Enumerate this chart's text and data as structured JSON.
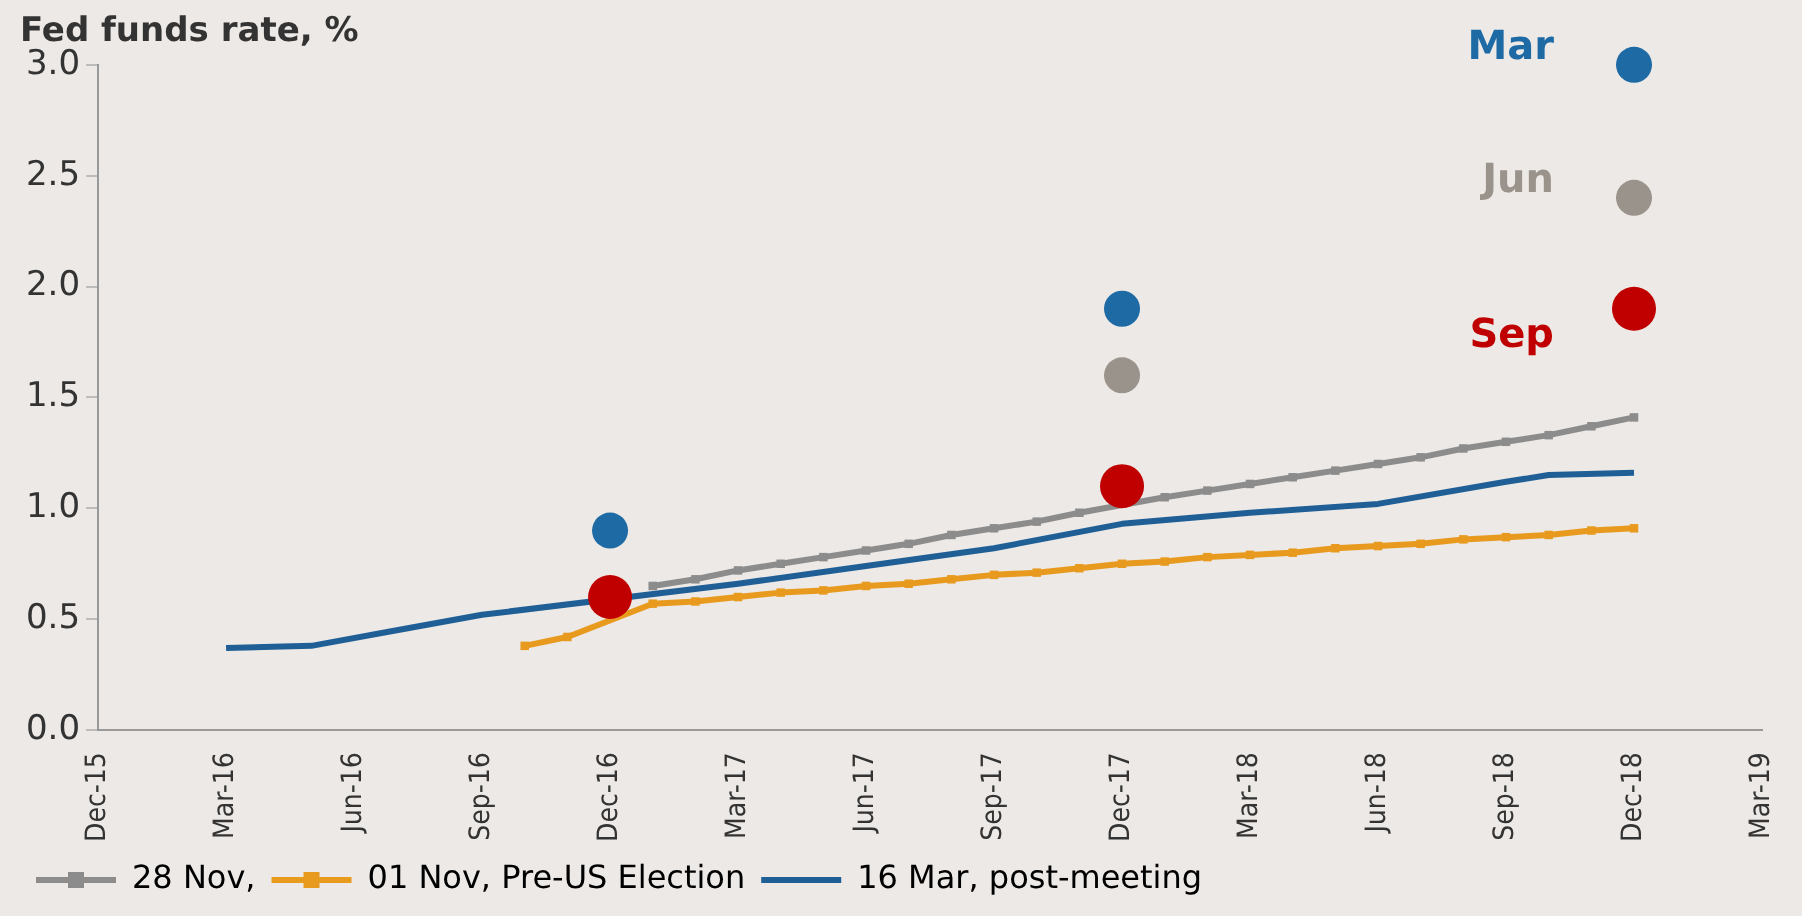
{
  "chart_data": {
    "type": "line",
    "title": "Fed funds rate, %",
    "legend": "bottom",
    "grid": false,
    "xlim": [
      "2015-12",
      "2019-03"
    ],
    "xticks": [
      {
        "value": "2015-12",
        "label": "Dec-15"
      },
      {
        "value": "2016-03",
        "label": "Mar-16"
      },
      {
        "value": "2016-06",
        "label": "Jun-16"
      },
      {
        "value": "2016-09",
        "label": "Sep-16"
      },
      {
        "value": "2016-12",
        "label": "Dec-16"
      },
      {
        "value": "2017-03",
        "label": "Mar-17"
      },
      {
        "value": "2017-06",
        "label": "Jun-17"
      },
      {
        "value": "2017-09",
        "label": "Sep-17"
      },
      {
        "value": "2017-12",
        "label": "Dec-17"
      },
      {
        "value": "2018-03",
        "label": "Mar-18"
      },
      {
        "value": "2018-06",
        "label": "Jun-18"
      },
      {
        "value": "2018-09",
        "label": "Sep-18"
      },
      {
        "value": "2018-12",
        "label": "Dec-18"
      },
      {
        "value": "2019-03",
        "label": "Mar-19"
      }
    ],
    "ylim": [
      0,
      3
    ],
    "yticks": [
      {
        "value": 0,
        "label": "0.0"
      },
      {
        "value": 0.5,
        "label": "0.5"
      },
      {
        "value": 1,
        "label": "1.0"
      },
      {
        "value": 1.5,
        "label": "1.5"
      },
      {
        "value": 2,
        "label": "2.0"
      },
      {
        "value": 2.5,
        "label": "2.5"
      },
      {
        "value": 3,
        "label": "3.0"
      }
    ],
    "series": [
      {
        "name": "28 Nov,",
        "marker": "square",
        "color": "#8c8c8c",
        "x": [
          "2017-01",
          "2017-02",
          "2017-03",
          "2017-04",
          "2017-05",
          "2017-06",
          "2017-07",
          "2017-08",
          "2017-09",
          "2017-10",
          "2017-11",
          "2017-12",
          "2018-01",
          "2018-02",
          "2018-03",
          "2018-04",
          "2018-05",
          "2018-06",
          "2018-07",
          "2018-08",
          "2018-09",
          "2018-10",
          "2018-11",
          "2018-12"
        ],
        "values": [
          0.65,
          0.68,
          0.72,
          0.75,
          0.78,
          0.81,
          0.84,
          0.88,
          0.91,
          0.94,
          0.98,
          null,
          1.05,
          1.08,
          1.11,
          1.14,
          1.17,
          1.2,
          1.23,
          1.27,
          1.3,
          1.33,
          1.37,
          1.41
        ]
      },
      {
        "name": "01 Nov, Pre-US Election",
        "marker": "square",
        "color": "#e89a1e",
        "x": [
          "2016-10",
          "2016-11",
          "2016-12",
          "2017-01",
          "2017-02",
          "2017-03",
          "2017-04",
          "2017-05",
          "2017-06",
          "2017-07",
          "2017-08",
          "2017-09",
          "2017-10",
          "2017-11",
          "2017-12",
          "2018-01",
          "2018-02",
          "2018-03",
          "2018-04",
          "2018-05",
          "2018-06",
          "2018-07",
          "2018-08",
          "2018-09",
          "2018-10",
          "2018-11",
          "2018-12"
        ],
        "values": [
          0.38,
          0.42,
          null,
          0.57,
          0.58,
          0.6,
          0.62,
          0.63,
          0.65,
          0.66,
          0.68,
          0.7,
          0.71,
          0.73,
          0.75,
          0.76,
          0.78,
          0.79,
          0.8,
          0.82,
          0.83,
          0.84,
          0.86,
          0.87,
          0.88,
          0.9,
          0.91
        ]
      },
      {
        "name": "16 Mar, post-meeting",
        "marker": "none",
        "color": "#1f5f96",
        "x": [
          "2016-03",
          "2016-05",
          "2016-07",
          "2016-09",
          "2016-12",
          "2017-03",
          "2017-06",
          "2017-09",
          "2017-12",
          "2018-03",
          "2018-06",
          "2018-09",
          "2018-10",
          "2018-12"
        ],
        "values": [
          0.37,
          0.38,
          0.45,
          0.52,
          null,
          0.66,
          0.74,
          0.82,
          0.93,
          0.98,
          1.02,
          1.12,
          1.15,
          1.16
        ]
      },
      {
        "name": "Mar",
        "type": "scatter",
        "marker": "circle",
        "color": "#1d6aa5",
        "x": [
          "2016-12",
          "2017-12",
          "2018-12"
        ],
        "values": [
          0.9,
          1.9,
          3.0
        ]
      },
      {
        "name": "Jun",
        "type": "scatter",
        "marker": "circle",
        "color": "#9a938b",
        "x": [
          "2017-12",
          "2018-12"
        ],
        "values": [
          1.6,
          2.4
        ]
      },
      {
        "name": "Sep",
        "type": "scatter",
        "marker": "circle",
        "color": "#c00000",
        "x": [
          "2016-12",
          "2017-12",
          "2018-12"
        ],
        "values": [
          0.6,
          1.1,
          1.9
        ]
      }
    ]
  }
}
